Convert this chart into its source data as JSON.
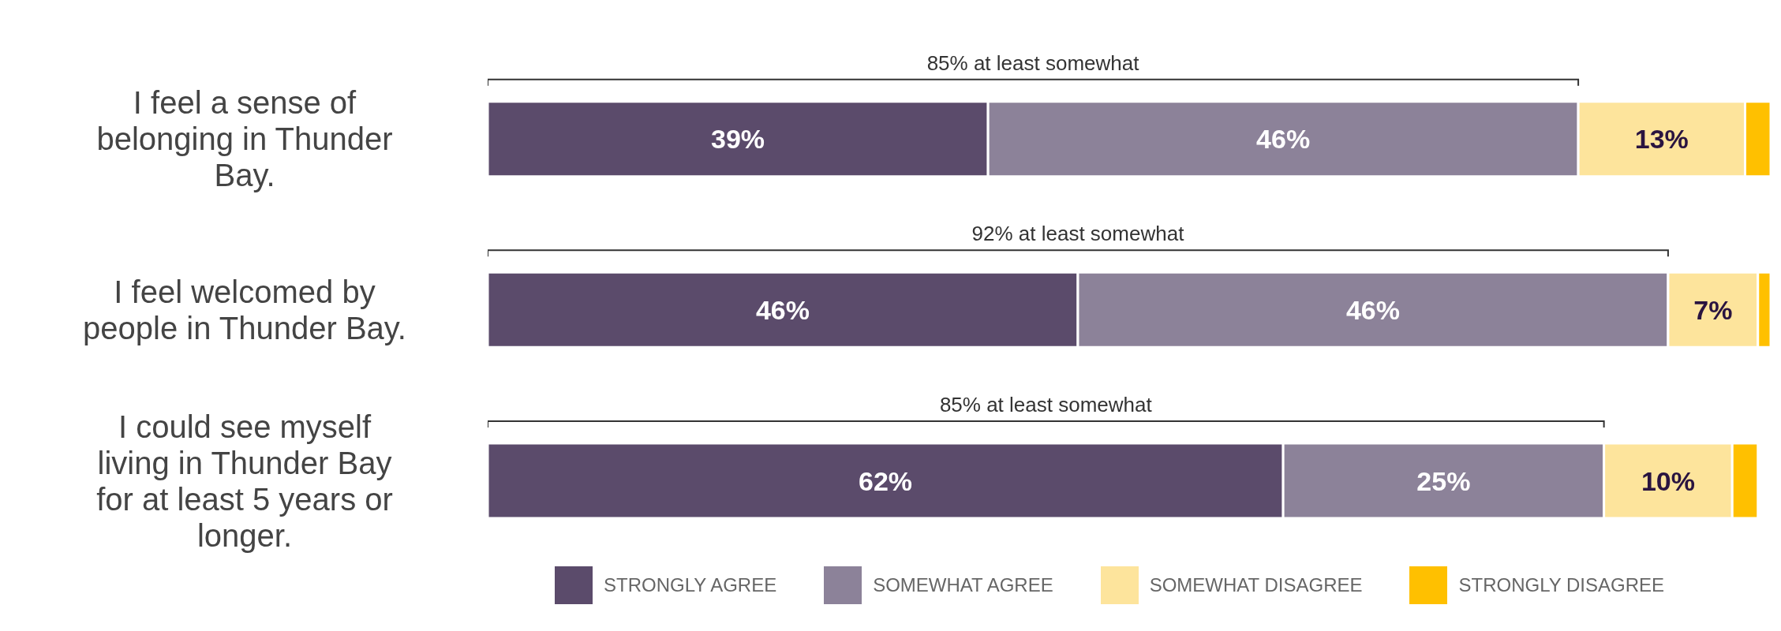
{
  "chart_data": {
    "type": "bar",
    "orientation": "horizontal",
    "stacked": true,
    "categories": [
      "I feel a sense of belonging in Thunder Bay.",
      "I feel welcomed by people in Thunder Bay.",
      "I could see myself living in Thunder Bay for at least 5 years or longer."
    ],
    "series": [
      {
        "name": "STRONGLY AGREE",
        "color": "#5b4b6b",
        "values": [
          39,
          46,
          62
        ],
        "value_labels": [
          "39%",
          "46%",
          "62%"
        ]
      },
      {
        "name": "SOMEWHAT AGREE",
        "color": "#8c8299",
        "values": [
          46,
          46,
          25
        ],
        "value_labels": [
          "46%",
          "46%",
          "25%"
        ]
      },
      {
        "name": "SOMEWHAT DISAGREE",
        "color": "#fde49c",
        "values": [
          13,
          7,
          10
        ],
        "value_labels": [
          "13%",
          "7%",
          "10%"
        ]
      },
      {
        "name": "STRONGLY DISAGREE",
        "color": "#ffc000",
        "values": [
          2,
          1,
          2
        ],
        "value_labels": [
          null,
          null,
          null
        ]
      }
    ],
    "annotations": [
      "85% at least somewhat",
      "92% at least somewhat",
      "85% at least somewhat"
    ],
    "legend": "bottom"
  }
}
